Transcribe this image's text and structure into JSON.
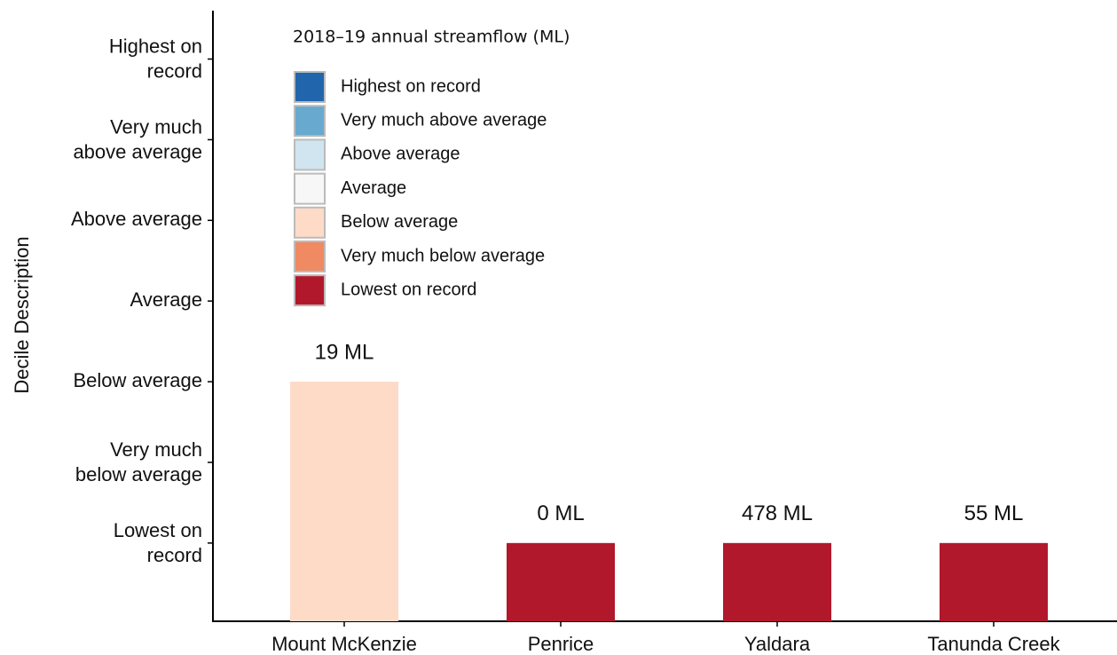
{
  "chart_data": {
    "type": "bar",
    "y_label": "Decile Description",
    "categories": [
      "Mount McKenzie",
      "Penrice",
      "Yaldara",
      "Tanunda Creek"
    ],
    "values": [
      3,
      1,
      1,
      1
    ],
    "colors": [
      "#fddbc7",
      "#b2182b",
      "#b2182b",
      "#b2182b"
    ],
    "annotations": [
      "19 ML",
      "0 ML",
      "478 ML",
      "55 ML"
    ],
    "ylim": [
      0.03,
      7.6
    ],
    "yticks": [
      {
        "value": 1,
        "label": "Lowest on\nrecord"
      },
      {
        "value": 2,
        "label": "Very much\nbelow average"
      },
      {
        "value": 3,
        "label": "Below average"
      },
      {
        "value": 4,
        "label": "Average"
      },
      {
        "value": 5,
        "label": "Above average"
      },
      {
        "value": 6,
        "label": "Very much\nabove average"
      },
      {
        "value": 7,
        "label": "Highest on\nrecord"
      }
    ],
    "legend": {
      "title": "2018–19 annual streamflow (ML)",
      "items": [
        {
          "label": "Highest on record",
          "color": "#2166ac"
        },
        {
          "label": "Very much above average",
          "color": "#67a9cf"
        },
        {
          "label": "Above average",
          "color": "#d1e5f0"
        },
        {
          "label": "Average",
          "color": "#f7f7f7"
        },
        {
          "label": "Below average",
          "color": "#fddbc7"
        },
        {
          "label": "Very much below average",
          "color": "#ef8a62"
        },
        {
          "label": "Lowest on record",
          "color": "#b2182b"
        }
      ]
    }
  }
}
